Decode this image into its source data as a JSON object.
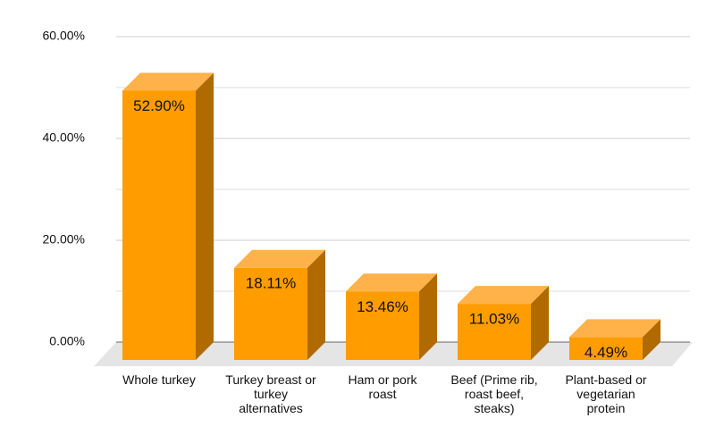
{
  "chart_data": {
    "type": "bar3d",
    "categories": [
      "Whole turkey",
      "Turkey breast or\nturkey\nalternatives",
      "Ham or pork\nroast",
      "Beef (Prime rib,\nroast beef,\nsteaks)",
      "Plant-based or\nvegetarian\nprotein"
    ],
    "values": [
      52.9,
      18.11,
      13.46,
      11.03,
      4.49
    ],
    "value_labels": [
      "52.90%",
      "18.11%",
      "13.46%",
      "11.03%",
      "4.49%"
    ],
    "color": "#ff9c00",
    "ylim": [
      0,
      60
    ],
    "yticks": [
      {
        "value": 0,
        "label": "0.00%"
      },
      {
        "value": 20,
        "label": "20.00%"
      },
      {
        "value": 40,
        "label": "40.00%"
      },
      {
        "value": 60,
        "label": "60.00%"
      }
    ],
    "minor_yticks": [
      10,
      30,
      50
    ],
    "grid": true
  }
}
